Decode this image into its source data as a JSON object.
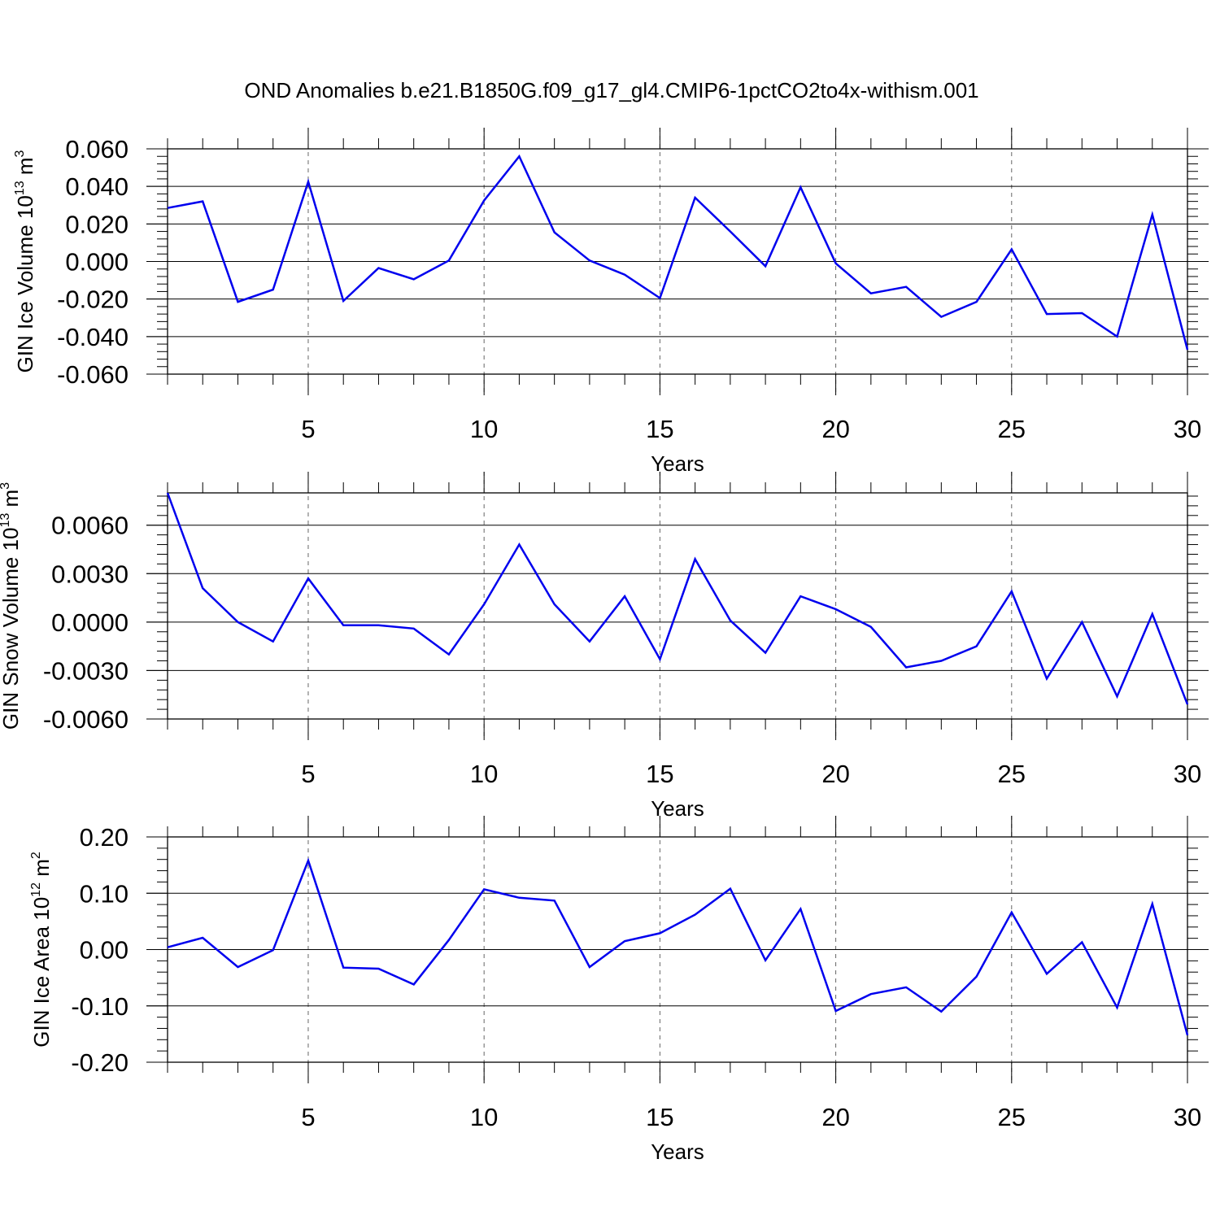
{
  "figure_title": "OND Anomalies b.e21.B1850G.f09_g17_gl4.CMIP6-1pctCO2to4x-withism.001",
  "colors": {
    "line": "#0000ee",
    "axis": "#000000",
    "grid": "#666666"
  },
  "chart_data": [
    {
      "type": "line",
      "title": "OND Anomalies b.e21.B1850G.f09_g17_gl4.CMIP6-1pctCO2to4x-withism.001",
      "ylabel": {
        "main": "GIN Ice Volume 10",
        "exp": "13",
        "unit": " m",
        "unit_exp": "3"
      },
      "xlabel": "Years",
      "xlim": [
        1,
        30
      ],
      "ylim": [
        -0.06,
        0.06
      ],
      "xticks": [
        5,
        10,
        15,
        20,
        25,
        30
      ],
      "xtick_labels": [
        "5",
        "10",
        "15",
        "20",
        "25",
        "30"
      ],
      "yticks": [
        -0.06,
        -0.04,
        -0.02,
        0.0,
        0.02,
        0.04,
        0.06
      ],
      "ytick_labels": [
        "-0.060",
        "-0.040",
        "-0.020",
        "0.000",
        "0.020",
        "0.040",
        "0.060"
      ],
      "grid_x": [
        5,
        10,
        15,
        20,
        25
      ],
      "x": [
        1,
        2,
        3,
        4,
        5,
        6,
        7,
        8,
        9,
        10,
        11,
        12,
        13,
        14,
        15,
        16,
        17,
        18,
        19,
        20,
        21,
        22,
        23,
        24,
        25,
        26,
        27,
        28,
        29,
        30
      ],
      "values": [
        0.0285,
        0.032,
        -0.0215,
        -0.015,
        0.0425,
        -0.021,
        -0.0035,
        -0.0095,
        0.0005,
        0.0325,
        0.056,
        0.0155,
        0.0005,
        -0.007,
        -0.0195,
        0.034,
        0.016,
        -0.0025,
        0.0395,
        -0.001,
        -0.017,
        -0.0135,
        -0.0295,
        -0.0215,
        0.0065,
        -0.028,
        -0.0275,
        -0.04,
        0.025,
        -0.047
      ]
    },
    {
      "type": "line",
      "ylabel": {
        "main": "GIN Snow Volume 10",
        "exp": "13",
        "unit": " m",
        "unit_exp": "3"
      },
      "xlabel": "Years",
      "xlim": [
        1,
        30
      ],
      "ylim": [
        -0.006,
        0.008
      ],
      "xticks": [
        5,
        10,
        15,
        20,
        25,
        30
      ],
      "xtick_labels": [
        "5",
        "10",
        "15",
        "20",
        "25",
        "30"
      ],
      "yticks": [
        -0.006,
        -0.003,
        0.0,
        0.003,
        0.006
      ],
      "ytick_labels": [
        "-0.0060",
        "-0.0030",
        "0.0000",
        "0.0030",
        "0.0060"
      ],
      "grid_x": [
        5,
        10,
        15,
        20,
        25
      ],
      "x": [
        1,
        2,
        3,
        4,
        5,
        6,
        7,
        8,
        9,
        10,
        11,
        12,
        13,
        14,
        15,
        16,
        17,
        18,
        19,
        20,
        21,
        22,
        23,
        24,
        25,
        26,
        27,
        28,
        29,
        30
      ],
      "values": [
        0.008,
        0.0021,
        0.0,
        -0.0012,
        0.0027,
        -0.0002,
        -0.0002,
        -0.0004,
        -0.002,
        0.0011,
        0.0048,
        0.0011,
        -0.0012,
        0.0016,
        -0.0023,
        0.0039,
        0.0001,
        -0.0019,
        0.0016,
        0.0008,
        -0.0003,
        -0.0028,
        -0.0024,
        -0.0015,
        0.0019,
        -0.0035,
        0.0,
        -0.0046,
        0.0005,
        -0.0051
      ]
    },
    {
      "type": "line",
      "ylabel": {
        "main": "GIN Ice Area 10",
        "exp": "12",
        "unit": " m",
        "unit_exp": "2"
      },
      "xlabel": "Years",
      "xlim": [
        1,
        30
      ],
      "ylim": [
        -0.2,
        0.2
      ],
      "xticks": [
        5,
        10,
        15,
        20,
        25,
        30
      ],
      "xtick_labels": [
        "5",
        "10",
        "15",
        "20",
        "25",
        "30"
      ],
      "yticks": [
        -0.2,
        -0.1,
        0.0,
        0.1,
        0.2
      ],
      "ytick_labels": [
        "-0.20",
        "-0.10",
        "0.00",
        "0.10",
        "0.20"
      ],
      "grid_x": [
        5,
        10,
        15,
        20,
        25
      ],
      "x": [
        1,
        2,
        3,
        4,
        5,
        6,
        7,
        8,
        9,
        10,
        11,
        12,
        13,
        14,
        15,
        16,
        17,
        18,
        19,
        20,
        21,
        22,
        23,
        24,
        25,
        26,
        27,
        28,
        29,
        30
      ],
      "values": [
        0.004,
        0.021,
        -0.031,
        -0.001,
        0.158,
        -0.032,
        -0.034,
        -0.062,
        0.017,
        0.107,
        0.092,
        0.087,
        -0.031,
        0.015,
        0.029,
        0.062,
        0.108,
        -0.019,
        0.072,
        -0.109,
        -0.079,
        -0.067,
        -0.11,
        -0.048,
        0.066,
        -0.043,
        0.013,
        -0.103,
        0.081,
        -0.152
      ]
    }
  ]
}
